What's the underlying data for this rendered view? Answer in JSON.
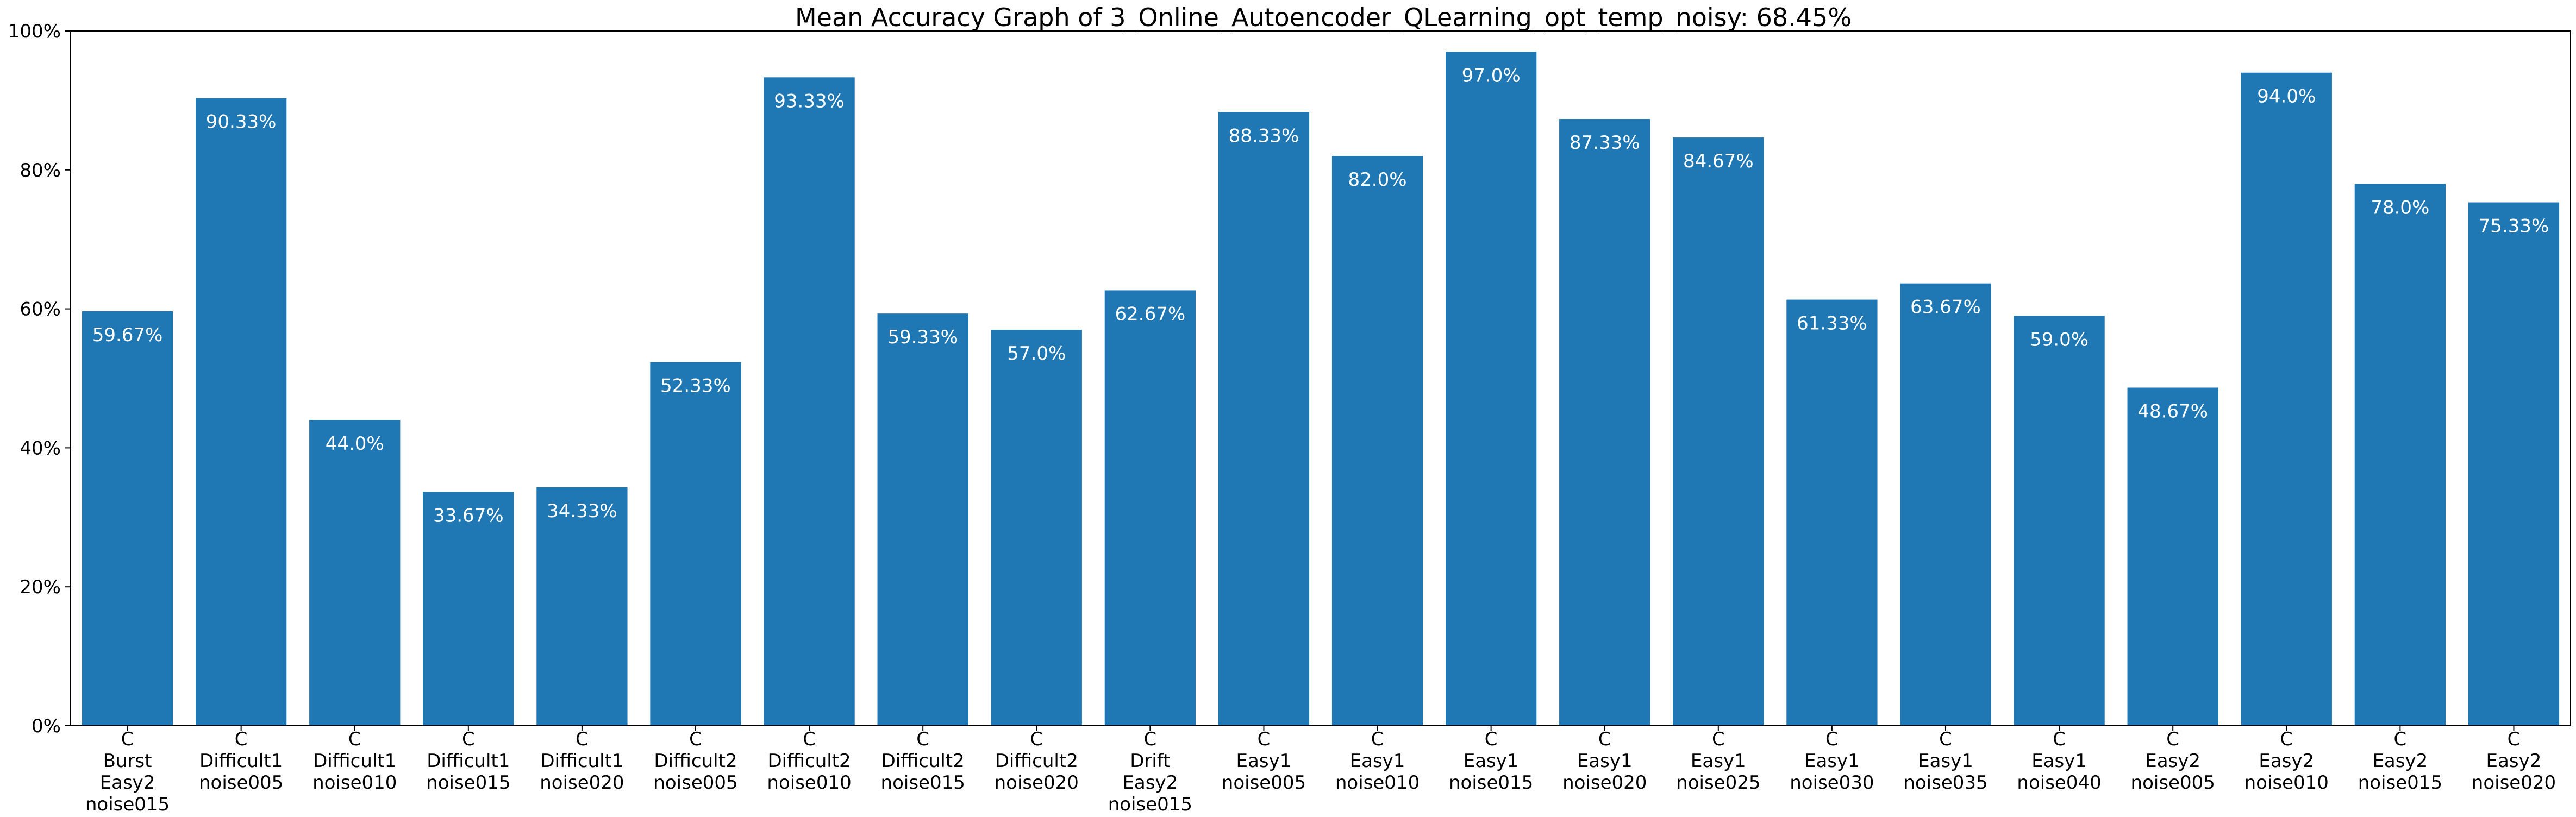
{
  "chart_data": {
    "type": "bar",
    "title": "Mean Accuracy Graph of 3_Online_Autoencoder_QLearning_opt_temp_noisy: 68.45%",
    "xlabel": "",
    "ylabel": "",
    "ylim": [
      0,
      100
    ],
    "grid": false,
    "bar_color": "#1f77b4",
    "label_color": "#ffffff",
    "y_ticks": [
      {
        "value": 0,
        "label": "0%"
      },
      {
        "value": 20,
        "label": "20%"
      },
      {
        "value": 40,
        "label": "40%"
      },
      {
        "value": 60,
        "label": "60%"
      },
      {
        "value": 80,
        "label": "80%"
      },
      {
        "value": 100,
        "label": "100%"
      }
    ],
    "categories": [
      [
        "C",
        "Burst",
        "Easy2",
        "noise015"
      ],
      [
        "C",
        "Difficult1",
        "noise005"
      ],
      [
        "C",
        "Difficult1",
        "noise010"
      ],
      [
        "C",
        "Difficult1",
        "noise015"
      ],
      [
        "C",
        "Difficult1",
        "noise020"
      ],
      [
        "C",
        "Difficult2",
        "noise005"
      ],
      [
        "C",
        "Difficult2",
        "noise010"
      ],
      [
        "C",
        "Difficult2",
        "noise015"
      ],
      [
        "C",
        "Difficult2",
        "noise020"
      ],
      [
        "C",
        "Drift",
        "Easy2",
        "noise015"
      ],
      [
        "C",
        "Easy1",
        "noise005"
      ],
      [
        "C",
        "Easy1",
        "noise010"
      ],
      [
        "C",
        "Easy1",
        "noise015"
      ],
      [
        "C",
        "Easy1",
        "noise020"
      ],
      [
        "C",
        "Easy1",
        "noise025"
      ],
      [
        "C",
        "Easy1",
        "noise030"
      ],
      [
        "C",
        "Easy1",
        "noise035"
      ],
      [
        "C",
        "Easy1",
        "noise040"
      ],
      [
        "C",
        "Easy2",
        "noise005"
      ],
      [
        "C",
        "Easy2",
        "noise010"
      ],
      [
        "C",
        "Easy2",
        "noise015"
      ],
      [
        "C",
        "Easy2",
        "noise020"
      ]
    ],
    "values": [
      59.67,
      90.33,
      44.0,
      33.67,
      34.33,
      52.33,
      93.33,
      59.33,
      57.0,
      62.67,
      88.33,
      82.0,
      97.0,
      87.33,
      84.67,
      61.33,
      63.67,
      59.0,
      48.67,
      94.0,
      78.0,
      75.33
    ],
    "data_labels": [
      "59.67%",
      "90.33%",
      "44.0%",
      "33.67%",
      "34.33%",
      "52.33%",
      "93.33%",
      "59.33%",
      "57.0%",
      "62.67%",
      "88.33%",
      "82.0%",
      "97.0%",
      "87.33%",
      "84.67%",
      "61.33%",
      "63.67%",
      "59.0%",
      "48.67%",
      "94.0%",
      "78.0%",
      "75.33%"
    ]
  }
}
